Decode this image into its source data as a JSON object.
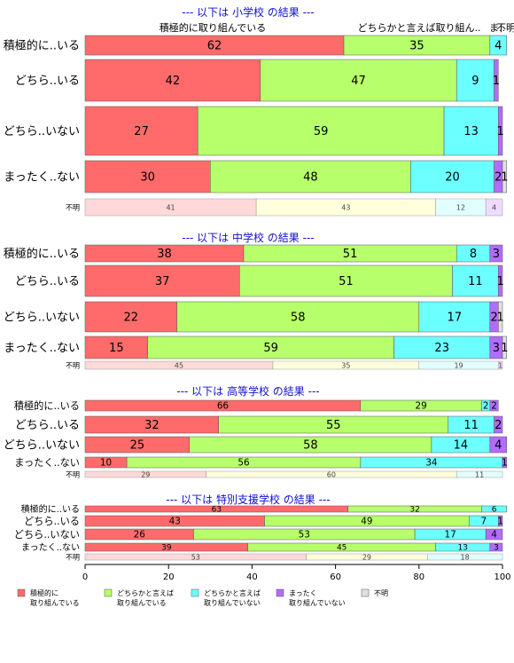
{
  "chart_data": {
    "type": "bar",
    "orientation": "horizontal",
    "stacked": true,
    "xlim": [
      0,
      100
    ],
    "x_ticks": [
      0,
      20,
      40,
      60,
      80,
      100
    ],
    "colors": [
      "#ff6b6b",
      "#b7ff6b",
      "#6bffff",
      "#b46bff",
      "#e0e0e0"
    ],
    "legend": {
      "position": "bottom",
      "entries": [
        "積極的に\n取り組んでいる",
        "どちらかと言えば\n取り組んでいる",
        "どちらかと言えば\n取り組んでいない",
        "まったく\n取り組んでいない",
        "不明"
      ]
    },
    "top_labels": [
      "積極的に取り組んでいる",
      "どちらかと言えば取り組ん..",
      "ま..",
      "不明"
    ],
    "panels": [
      {
        "title": "--- 以下は 小学校 の結果 ---",
        "rows": [
          {
            "label": "積極的に..いる",
            "values": [
              62,
              35,
              4,
              0,
              0
            ]
          },
          {
            "label": "どちら..いる",
            "values": [
              42,
              47,
              9,
              1,
              0
            ]
          },
          {
            "label": "どちら..いない",
            "values": [
              27,
              59,
              13,
              1,
              0
            ]
          },
          {
            "label": "まったく..ない",
            "values": [
              30,
              48,
              20,
              2,
              1
            ]
          }
        ],
        "unknown": {
          "label": "不明",
          "values": [
            41,
            43,
            12,
            4,
            0
          ]
        }
      },
      {
        "title": "--- 以下は 中学校 の結果 ---",
        "rows": [
          {
            "label": "積極的に..いる",
            "values": [
              38,
              51,
              8,
              3,
              0
            ]
          },
          {
            "label": "どちら..いる",
            "values": [
              37,
              51,
              11,
              1,
              0
            ]
          },
          {
            "label": "どちら..いない",
            "values": [
              22,
              58,
              17,
              2,
              1
            ]
          },
          {
            "label": "まったく..ない",
            "values": [
              15,
              59,
              23,
              3,
              1
            ]
          }
        ],
        "unknown": {
          "label": "不明",
          "values": [
            45,
            35,
            19,
            1,
            0
          ]
        }
      },
      {
        "title": "--- 以下は 高等学校 の結果 ---",
        "rows": [
          {
            "label": "積極的に..いる",
            "values": [
              66,
              29,
              2,
              2,
              0
            ]
          },
          {
            "label": "どちら..いる",
            "values": [
              32,
              55,
              11,
              2,
              0
            ]
          },
          {
            "label": "どちら..いない",
            "values": [
              25,
              58,
              14,
              4,
              0
            ]
          },
          {
            "label": "まったく..ない",
            "values": [
              10,
              56,
              34,
              1,
              0
            ]
          }
        ],
        "unknown": {
          "label": "不明",
          "values": [
            29,
            60,
            11,
            0,
            0
          ]
        }
      },
      {
        "title": "--- 以下は 特別支援学校 の結果 ---",
        "rows": [
          {
            "label": "積極的に..いる",
            "values": [
              63,
              32,
              6,
              0,
              0
            ]
          },
          {
            "label": "どちら..いる",
            "values": [
              43,
              49,
              7,
              1,
              0
            ]
          },
          {
            "label": "どちら..いない",
            "values": [
              26,
              53,
              17,
              4,
              0
            ]
          },
          {
            "label": "まったく..ない",
            "values": [
              39,
              45,
              13,
              3,
              0
            ]
          }
        ],
        "unknown": {
          "label": "不明",
          "values": [
            53,
            29,
            18,
            0,
            0
          ]
        }
      }
    ]
  }
}
